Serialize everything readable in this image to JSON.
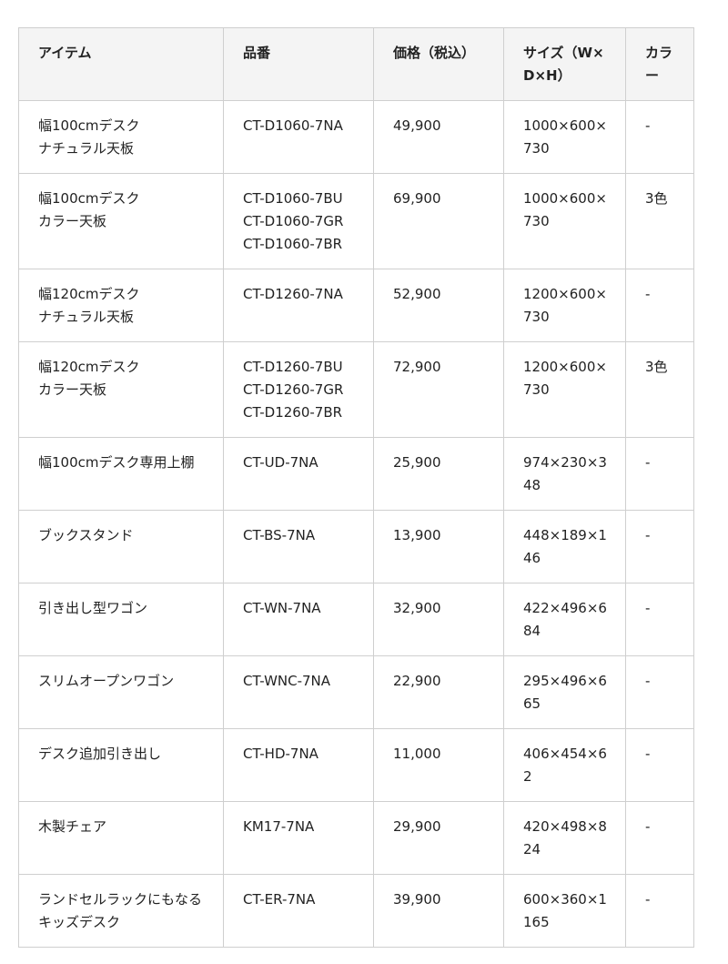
{
  "table": {
    "headers": [
      "アイテム",
      "品番",
      "価格（税込）",
      "サイズ（W×D×H）",
      "カラー"
    ],
    "rows": [
      {
        "item": "幅100cmデスク\nナチュラル天板",
        "part": "CT-D1060-7NA",
        "price": "49,900",
        "size": "1000×600×730",
        "color": "-"
      },
      {
        "item": "幅100cmデスク\nカラー天板",
        "part": "CT-D1060-7BU\nCT-D1060-7GR\nCT-D1060-7BR",
        "price": "69,900",
        "size": "1000×600×730",
        "color": "3色"
      },
      {
        "item": "幅120cmデスク\nナチュラル天板",
        "part": "CT-D1260-7NA",
        "price": "52,900",
        "size": "1200×600×730",
        "color": "-"
      },
      {
        "item": "幅120cmデスク\nカラー天板",
        "part": "CT-D1260-7BU\nCT-D1260-7GR\nCT-D1260-7BR",
        "price": "72,900",
        "size": "1200×600×730",
        "color": "3色"
      },
      {
        "item": "幅100cmデスク専用上棚",
        "part": "CT-UD-7NA",
        "price": "25,900",
        "size": "974×230×348",
        "color": "-"
      },
      {
        "item": "ブックスタンド",
        "part": "CT-BS-7NA",
        "price": "13,900",
        "size": "448×189×146",
        "color": "-"
      },
      {
        "item": "引き出し型ワゴン",
        "part": "CT-WN-7NA",
        "price": "32,900",
        "size": "422×496×684",
        "color": "-"
      },
      {
        "item": "スリムオープンワゴン",
        "part": "CT-WNC-7NA",
        "price": "22,900",
        "size": "295×496×665",
        "color": "-"
      },
      {
        "item": "デスク追加引き出し",
        "part": "CT-HD-7NA",
        "price": "11,000",
        "size": "406×454×62",
        "color": "-"
      },
      {
        "item": "木製チェア",
        "part": "KM17-7NA",
        "price": "29,900",
        "size": "420×498×824",
        "color": "-"
      },
      {
        "item": "ランドセルラックにもなるキッズデスク",
        "part": "CT-ER-7NA",
        "price": "39,900",
        "size": "600×360×1165",
        "color": "-"
      }
    ]
  }
}
